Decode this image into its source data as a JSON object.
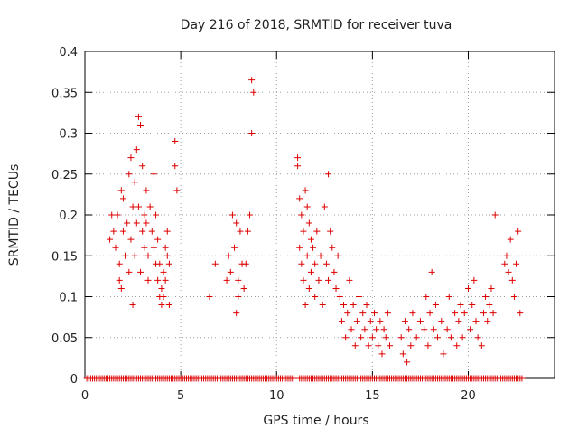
{
  "chart_data": {
    "type": "scatter",
    "title": "Day 216 of 2018, SRMTID for receiver tuva",
    "xlabel": "GPS time / hours",
    "ylabel": "SRMTID / TECUs",
    "xlim": [
      0,
      24.5
    ],
    "ylim": [
      0,
      0.4
    ],
    "x_ticks": [
      0,
      5,
      10,
      15,
      20
    ],
    "x_tick_labels": [
      "0",
      "5",
      "10",
      "15",
      "20"
    ],
    "y_ticks": [
      0,
      0.05,
      0.1,
      0.15,
      0.2,
      0.25,
      0.3,
      0.35,
      0.4
    ],
    "y_tick_labels": [
      "0",
      "0.05",
      "0.1",
      "0.15",
      "0.2",
      "0.25",
      "0.3",
      "0.35",
      "0.4"
    ],
    "grid": true,
    "marker": "+",
    "color": "#dd0000",
    "series": [
      {
        "name": "SRMTID",
        "points": [
          [
            1.3,
            0.17
          ],
          [
            1.4,
            0.2
          ],
          [
            1.5,
            0.18
          ],
          [
            1.6,
            0.16
          ],
          [
            1.7,
            0.2
          ],
          [
            1.8,
            0.14
          ],
          [
            1.8,
            0.12
          ],
          [
            1.9,
            0.23
          ],
          [
            1.9,
            0.11
          ],
          [
            2.0,
            0.18
          ],
          [
            2.0,
            0.22
          ],
          [
            2.1,
            0.15
          ],
          [
            2.2,
            0.19
          ],
          [
            2.3,
            0.25
          ],
          [
            2.3,
            0.13
          ],
          [
            2.4,
            0.27
          ],
          [
            2.4,
            0.17
          ],
          [
            2.5,
            0.21
          ],
          [
            2.5,
            0.09
          ],
          [
            2.6,
            0.15
          ],
          [
            2.6,
            0.24
          ],
          [
            2.7,
            0.19
          ],
          [
            2.7,
            0.28
          ],
          [
            2.8,
            0.32
          ],
          [
            2.8,
            0.21
          ],
          [
            2.9,
            0.31
          ],
          [
            2.9,
            0.13
          ],
          [
            3.0,
            0.26
          ],
          [
            3.0,
            0.18
          ],
          [
            3.1,
            0.2
          ],
          [
            3.1,
            0.16
          ],
          [
            3.2,
            0.23
          ],
          [
            3.2,
            0.19
          ],
          [
            3.3,
            0.15
          ],
          [
            3.3,
            0.12
          ],
          [
            3.4,
            0.21
          ],
          [
            3.5,
            0.18
          ],
          [
            3.6,
            0.25
          ],
          [
            3.6,
            0.16
          ],
          [
            3.7,
            0.2
          ],
          [
            3.7,
            0.14
          ],
          [
            3.8,
            0.12
          ],
          [
            3.8,
            0.17
          ],
          [
            3.9,
            0.1
          ],
          [
            3.9,
            0.14
          ],
          [
            4.0,
            0.11
          ],
          [
            4.0,
            0.09
          ],
          [
            4.1,
            0.1
          ],
          [
            4.1,
            0.13
          ],
          [
            4.2,
            0.16
          ],
          [
            4.2,
            0.12
          ],
          [
            4.3,
            0.18
          ],
          [
            4.3,
            0.15
          ],
          [
            4.4,
            0.14
          ],
          [
            4.4,
            0.09
          ],
          [
            4.7,
            0.29
          ],
          [
            4.7,
            0.26
          ],
          [
            4.8,
            0.23
          ],
          [
            6.5,
            0.1
          ],
          [
            6.8,
            0.14
          ],
          [
            7.4,
            0.12
          ],
          [
            7.5,
            0.15
          ],
          [
            7.6,
            0.13
          ],
          [
            7.7,
            0.2
          ],
          [
            7.8,
            0.16
          ],
          [
            7.9,
            0.19
          ],
          [
            8.0,
            0.12
          ],
          [
            8.0,
            0.1
          ],
          [
            8.1,
            0.18
          ],
          [
            8.2,
            0.14
          ],
          [
            8.3,
            0.11
          ],
          [
            8.4,
            0.14
          ],
          [
            8.5,
            0.18
          ],
          [
            8.6,
            0.2
          ],
          [
            8.7,
            0.3
          ],
          [
            8.7,
            0.365
          ],
          [
            8.8,
            0.35
          ],
          [
            7.9,
            0.08
          ],
          [
            11.1,
            0.27
          ],
          [
            11.1,
            0.26
          ],
          [
            11.2,
            0.22
          ],
          [
            11.2,
            0.16
          ],
          [
            11.3,
            0.2
          ],
          [
            11.3,
            0.14
          ],
          [
            11.4,
            0.18
          ],
          [
            11.4,
            0.12
          ],
          [
            11.5,
            0.23
          ],
          [
            11.5,
            0.09
          ],
          [
            11.6,
            0.21
          ],
          [
            11.6,
            0.15
          ],
          [
            11.7,
            0.19
          ],
          [
            11.7,
            0.11
          ],
          [
            11.8,
            0.17
          ],
          [
            11.8,
            0.13
          ],
          [
            11.9,
            0.16
          ],
          [
            12.0,
            0.14
          ],
          [
            12.0,
            0.1
          ],
          [
            12.1,
            0.18
          ],
          [
            12.2,
            0.12
          ],
          [
            12.3,
            0.15
          ],
          [
            12.4,
            0.09
          ],
          [
            12.5,
            0.21
          ],
          [
            12.6,
            0.14
          ],
          [
            12.7,
            0.25
          ],
          [
            12.7,
            0.12
          ],
          [
            12.8,
            0.18
          ],
          [
            12.9,
            0.16
          ],
          [
            13.0,
            0.13
          ],
          [
            13.1,
            0.11
          ],
          [
            13.2,
            0.15
          ],
          [
            13.3,
            0.1
          ],
          [
            13.4,
            0.07
          ],
          [
            13.5,
            0.09
          ],
          [
            13.6,
            0.05
          ],
          [
            13.7,
            0.08
          ],
          [
            13.8,
            0.12
          ],
          [
            13.9,
            0.06
          ],
          [
            14.0,
            0.09
          ],
          [
            14.1,
            0.04
          ],
          [
            14.2,
            0.07
          ],
          [
            14.3,
            0.1
          ],
          [
            14.4,
            0.05
          ],
          [
            14.5,
            0.08
          ],
          [
            14.6,
            0.06
          ],
          [
            14.7,
            0.09
          ],
          [
            14.8,
            0.04
          ],
          [
            14.9,
            0.07
          ],
          [
            15.0,
            0.05
          ],
          [
            15.1,
            0.08
          ],
          [
            15.2,
            0.06
          ],
          [
            15.3,
            0.04
          ],
          [
            15.4,
            0.07
          ],
          [
            15.5,
            0.03
          ],
          [
            15.6,
            0.06
          ],
          [
            15.7,
            0.05
          ],
          [
            15.8,
            0.08
          ],
          [
            15.9,
            0.04
          ],
          [
            16.5,
            0.05
          ],
          [
            16.6,
            0.03
          ],
          [
            16.7,
            0.07
          ],
          [
            16.8,
            0.02
          ],
          [
            16.9,
            0.06
          ],
          [
            17.0,
            0.04
          ],
          [
            17.1,
            0.08
          ],
          [
            17.3,
            0.05
          ],
          [
            17.5,
            0.07
          ],
          [
            17.7,
            0.06
          ],
          [
            17.8,
            0.1
          ],
          [
            17.9,
            0.04
          ],
          [
            18.0,
            0.08
          ],
          [
            18.1,
            0.13
          ],
          [
            18.2,
            0.06
          ],
          [
            18.3,
            0.09
          ],
          [
            18.4,
            0.05
          ],
          [
            18.6,
            0.07
          ],
          [
            18.7,
            0.03
          ],
          [
            18.9,
            0.06
          ],
          [
            19.0,
            0.1
          ],
          [
            19.1,
            0.05
          ],
          [
            19.3,
            0.08
          ],
          [
            19.4,
            0.04
          ],
          [
            19.5,
            0.07
          ],
          [
            19.6,
            0.09
          ],
          [
            19.7,
            0.05
          ],
          [
            19.8,
            0.08
          ],
          [
            20.0,
            0.11
          ],
          [
            20.1,
            0.06
          ],
          [
            20.2,
            0.09
          ],
          [
            20.3,
            0.12
          ],
          [
            20.4,
            0.07
          ],
          [
            20.5,
            0.05
          ],
          [
            20.7,
            0.04
          ],
          [
            20.8,
            0.08
          ],
          [
            20.9,
            0.1
          ],
          [
            21.0,
            0.07
          ],
          [
            21.1,
            0.09
          ],
          [
            21.2,
            0.11
          ],
          [
            21.3,
            0.08
          ],
          [
            21.4,
            0.2
          ],
          [
            21.9,
            0.14
          ],
          [
            22.0,
            0.15
          ],
          [
            22.1,
            0.13
          ],
          [
            22.2,
            0.17
          ],
          [
            22.3,
            0.12
          ],
          [
            22.4,
            0.1
          ],
          [
            22.5,
            0.14
          ],
          [
            22.6,
            0.18
          ],
          [
            22.7,
            0.08
          ]
        ]
      }
    ],
    "zero_segments": [
      [
        0.1,
        10.9
      ],
      [
        11.2,
        22.8
      ]
    ]
  }
}
